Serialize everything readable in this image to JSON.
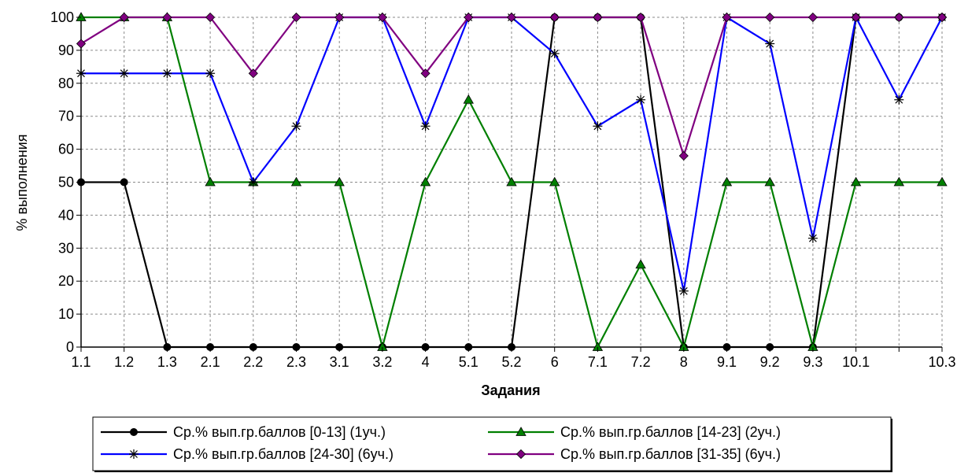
{
  "chart_data": {
    "type": "line",
    "xlabel": "Задания",
    "ylabel": "% выполнения",
    "ylim": [
      0,
      100
    ],
    "yticks": [
      "0",
      "10",
      "20",
      "30",
      "40",
      "50",
      "60",
      "70",
      "80",
      "90",
      "100"
    ],
    "grid": true,
    "legend_position": "bottom",
    "categories": [
      "1.1",
      "1.2",
      "1.3",
      "2.1",
      "2.2",
      "2.3",
      "3.1",
      "3.2",
      "4",
      "5.1",
      "5.2",
      "6",
      "7.1",
      "7.2",
      "8",
      "9.1",
      "9.2",
      "9.3",
      "10.1",
      "",
      "10.3"
    ],
    "series": [
      {
        "name": "Ср.% вып.гр.баллов [0-13] (1уч.)",
        "color": "#000000",
        "marker": "circle",
        "values": [
          50,
          50,
          0,
          0,
          0,
          0,
          0,
          0,
          0,
          0,
          0,
          100,
          100,
          100,
          0,
          0,
          0,
          0,
          100,
          100,
          100
        ]
      },
      {
        "name": "Ср.% вып.гр.баллов [14-23] (2уч.)",
        "color": "#007F00",
        "marker": "triangle",
        "values": [
          100,
          100,
          100,
          50,
          50,
          50,
          50,
          0,
          50,
          75,
          50,
          50,
          0,
          25,
          0,
          50,
          50,
          0,
          50,
          50,
          50
        ]
      },
      {
        "name": "Ср.% вып.гр.баллов [24-30] (6уч.)",
        "color": "#0000FF",
        "marker": "star",
        "values": [
          83,
          83,
          83,
          83,
          50,
          67,
          100,
          100,
          67,
          100,
          100,
          89,
          67,
          75,
          17,
          100,
          92,
          33,
          100,
          75,
          100
        ]
      },
      {
        "name": "Ср.% вып.гр.баллов [31-35] (6уч.)",
        "color": "#800080",
        "marker": "diamond",
        "values": [
          92,
          100,
          100,
          100,
          83,
          100,
          100,
          100,
          83,
          100,
          100,
          100,
          100,
          100,
          58,
          100,
          100,
          100,
          100,
          100,
          100
        ]
      }
    ]
  }
}
